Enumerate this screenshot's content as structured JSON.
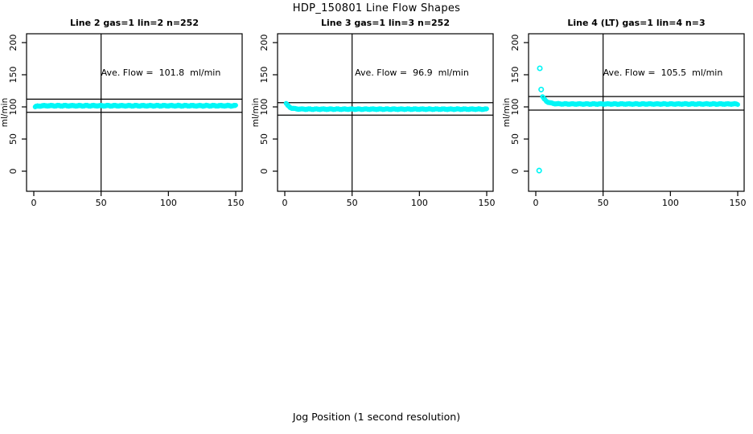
{
  "chart_data": {
    "type": "scatter",
    "title": "HDP_150801  Line Flow Shapes",
    "xlabel": "Jog Position (1 second resolution)",
    "ylabel": "ml/min",
    "x_ticks": [
      0,
      50,
      100,
      150
    ],
    "y_ticks": [
      0,
      50,
      100,
      150,
      200
    ],
    "xlim": [
      -6,
      156
    ],
    "ylim": [
      -31,
      214
    ],
    "grid": false,
    "point_color": "#00F6F6",
    "vline_x": 50,
    "panels": [
      {
        "title": "Line 2 gas=1 lin=2 n=252",
        "annotation": "Ave. Flow =  101.8  ml/min",
        "ave_flow": 101.8,
        "n": 252,
        "upper_line": 112.0,
        "lower_line": 91.6,
        "series": {
          "x_start": 1,
          "x_end": 150,
          "n": 252,
          "start_y": 100.0,
          "settle_y": 101.8,
          "tau": 2.0,
          "jitter": 1.2
        },
        "outliers": []
      },
      {
        "title": "Line 3 gas=1 lin=3 n=252",
        "annotation": "Ave. Flow =  96.9  ml/min",
        "ave_flow": 96.9,
        "n": 252,
        "upper_line": 106.6,
        "lower_line": 87.2,
        "series": {
          "x_start": 1,
          "x_end": 150,
          "n": 252,
          "start_y": 105.5,
          "settle_y": 96.5,
          "tau": 2.5,
          "jitter": 1.0
        },
        "outliers": []
      },
      {
        "title": "Line 4 (LT) gas=1 lin=4 n=3",
        "annotation": "Ave. Flow =  105.5  ml/min",
        "ave_flow": 105.5,
        "n": 3,
        "upper_line": 116.1,
        "lower_line": 95.0,
        "series": {
          "x_start": 5,
          "x_end": 150,
          "n": 246,
          "start_y": 116.0,
          "settle_y": 104.5,
          "tau": 3.0,
          "jitter": 1.0
        },
        "outliers": [
          {
            "x": 3,
            "y": 160
          },
          {
            "x": 4,
            "y": 127
          },
          {
            "x": 2.5,
            "y": 1
          }
        ]
      }
    ]
  }
}
